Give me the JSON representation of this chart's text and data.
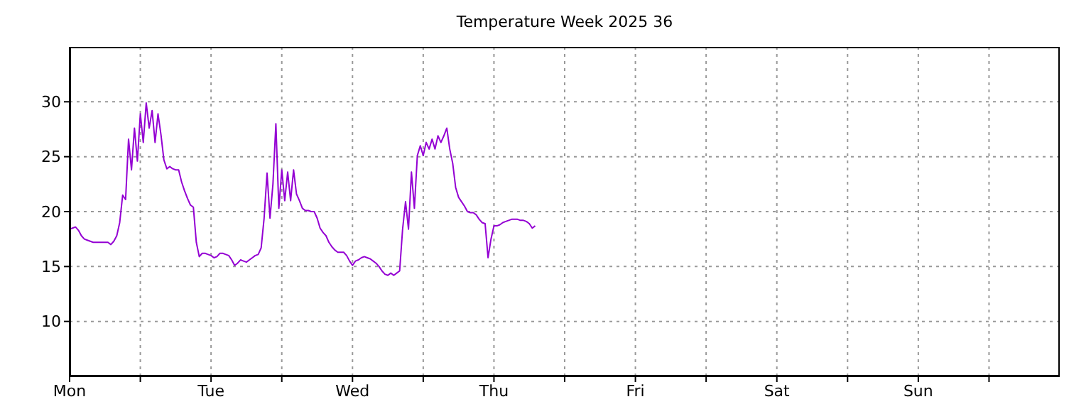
{
  "chart_data": {
    "type": "line",
    "title": "Temperature Week 2025 36",
    "categories": [
      "Mon",
      null,
      null,
      null,
      null,
      null,
      null,
      null,
      null,
      null,
      null,
      null,
      null,
      null,
      null,
      null,
      null,
      null,
      null,
      null,
      null,
      null,
      null,
      null,
      null,
      null,
      null,
      null,
      null,
      null,
      null,
      null,
      null,
      null,
      null,
      null,
      null,
      null,
      null,
      null,
      null,
      null,
      null,
      null,
      null,
      null,
      null,
      null,
      "Tue",
      null,
      null,
      null,
      null,
      null,
      null,
      null,
      null,
      null,
      null,
      null,
      null,
      null,
      null,
      null,
      null,
      null,
      null,
      null,
      null,
      null,
      null,
      null,
      null,
      null,
      null,
      null,
      null,
      null,
      null,
      null,
      null,
      null,
      null,
      null,
      null,
      null,
      null,
      null,
      null,
      null,
      null,
      null,
      null,
      null,
      null,
      null,
      "Wed",
      null,
      null,
      null,
      null,
      null,
      null,
      null,
      null,
      null,
      null,
      null,
      null,
      null,
      null,
      null,
      null,
      null,
      null,
      null,
      null,
      null,
      null,
      null,
      null,
      null,
      null,
      null,
      null,
      null,
      null,
      null,
      null,
      null,
      null,
      null,
      null,
      null,
      null,
      null,
      null,
      null,
      null,
      null,
      null,
      null,
      null,
      null,
      "Thu",
      null,
      null,
      null,
      null,
      null,
      null,
      null,
      null,
      null,
      null,
      null,
      null,
      null,
      null,
      null,
      null,
      null,
      null,
      null,
      null,
      null,
      null,
      null,
      null,
      null,
      null,
      null,
      null,
      null,
      null,
      null,
      null,
      null,
      null,
      null,
      null,
      null,
      null,
      null,
      null,
      null,
      null,
      null,
      null,
      null,
      null,
      null,
      "Fri",
      null,
      null,
      null,
      null,
      null,
      null,
      null,
      null,
      null,
      null,
      null,
      null,
      null,
      null,
      null,
      null,
      null,
      null,
      null,
      null,
      null,
      null,
      null,
      null,
      null,
      null,
      null,
      null,
      null,
      null,
      null,
      null,
      null,
      null,
      null,
      null,
      null,
      null,
      null,
      null,
      null,
      null,
      null,
      null,
      null,
      null,
      null,
      "Sat",
      null,
      null,
      null,
      null,
      null,
      null,
      null,
      null,
      null,
      null,
      null,
      null,
      null,
      null,
      null,
      null,
      null,
      null,
      null,
      null,
      null,
      null,
      null,
      null,
      null,
      null,
      null,
      null,
      null,
      null,
      null,
      null,
      null,
      null,
      null,
      null,
      null,
      null,
      null,
      null,
      null,
      null,
      null,
      null,
      null,
      null,
      null,
      "Sun",
      null,
      null,
      null,
      null,
      null,
      null,
      null,
      null,
      null,
      null,
      null,
      null,
      null,
      null,
      null,
      null,
      null,
      null,
      null,
      null,
      null,
      null,
      null,
      null,
      null,
      null,
      null,
      null,
      null,
      null,
      null,
      null,
      null,
      null,
      null,
      null,
      null,
      null,
      null,
      null,
      null,
      null,
      null,
      null,
      null,
      null,
      null
    ],
    "series": [
      {
        "color": "#9400d3",
        "values": [
          18.4,
          18.5,
          18.6,
          18.3,
          17.8,
          17.5,
          17.4,
          17.3,
          17.2,
          17.2,
          17.2,
          17.2,
          17.2,
          17.2,
          17.0,
          17.3,
          17.8,
          19.0,
          21.5,
          21.1,
          26.6,
          23.8,
          27.6,
          24.6,
          28.9,
          26.3,
          29.9,
          27.6,
          29.2,
          26.3,
          28.9,
          27.0,
          24.7,
          23.9,
          24.1,
          23.9,
          23.8,
          23.8,
          22.7,
          21.9,
          21.2,
          20.6,
          20.4,
          17.2,
          15.9,
          16.2,
          16.2,
          16.1,
          16.0,
          15.8,
          15.9,
          16.2,
          16.2,
          16.1,
          16.0,
          15.6,
          15.1,
          15.3,
          15.6,
          15.5,
          15.4,
          15.6,
          15.8,
          16.0,
          16.1,
          16.7,
          19.4,
          23.5,
          19.4,
          22.5,
          28.0,
          20.3,
          23.8,
          21.0,
          23.6,
          21.0,
          23.8,
          21.6,
          21.0,
          20.3,
          20.1,
          20.1,
          20.0,
          20.0,
          19.4,
          18.5,
          18.1,
          17.8,
          17.2,
          16.8,
          16.5,
          16.3,
          16.3,
          16.3,
          16.0,
          15.5,
          15.1,
          15.5,
          15.6,
          15.8,
          15.9,
          15.8,
          15.7,
          15.5,
          15.3,
          15.0,
          14.6,
          14.3,
          14.2,
          14.4,
          14.2,
          14.4,
          14.6,
          18.4,
          20.9,
          18.4,
          23.6,
          20.3,
          25.1,
          26.0,
          25.1,
          26.3,
          25.7,
          26.6,
          25.7,
          26.9,
          26.3,
          26.9,
          27.6,
          25.7,
          24.4,
          22.2,
          21.3,
          20.9,
          20.5,
          20.0,
          19.9,
          19.9,
          19.7,
          19.3,
          19.0,
          18.9,
          15.8,
          17.5,
          18.7,
          18.7,
          18.8,
          19.0,
          19.1,
          19.2,
          19.3,
          19.3,
          19.3,
          19.2,
          19.2,
          19.1,
          18.9,
          18.5,
          18.7,
          null,
          null,
          null,
          null,
          null,
          null,
          null,
          null,
          null,
          null,
          null,
          null,
          null,
          null,
          null,
          null,
          null,
          null,
          null,
          null,
          null,
          null,
          null,
          null,
          null,
          null,
          null,
          null,
          null,
          null,
          null,
          null,
          null,
          null,
          null,
          null,
          null,
          null,
          null,
          null,
          null,
          null,
          null,
          null,
          null,
          null,
          null,
          null,
          null,
          null,
          null,
          null,
          null,
          null,
          null,
          null,
          null,
          null,
          null,
          null,
          null,
          null,
          null,
          null,
          null,
          null,
          null,
          null,
          null,
          null,
          null,
          null,
          null,
          null,
          null,
          null,
          null,
          null,
          null,
          null,
          null,
          null,
          null,
          null,
          null,
          null,
          null,
          null,
          null,
          null,
          null,
          null,
          null,
          null,
          null,
          null,
          null,
          null,
          null,
          null,
          null,
          null,
          null,
          null,
          null,
          null,
          null,
          null,
          null,
          null,
          null,
          null,
          null,
          null,
          null,
          null,
          null,
          null,
          null,
          null,
          null,
          null,
          null,
          null,
          null,
          null,
          null,
          null,
          null,
          null,
          null,
          null,
          null,
          null,
          null,
          null,
          null,
          null,
          null,
          null,
          null,
          null,
          null,
          null,
          null,
          null,
          null,
          null,
          null,
          null,
          null,
          null,
          null,
          null,
          null,
          null,
          null,
          null,
          null,
          null,
          null,
          null,
          null,
          null,
          null,
          null,
          null,
          null,
          null,
          null,
          null,
          null,
          null,
          null,
          null,
          null,
          null
        ]
      }
    ],
    "ylim": [
      5,
      35
    ],
    "yticks": [
      10,
      15,
      20,
      25,
      30
    ],
    "grid": true,
    "marker": "none",
    "line_style": "solid"
  }
}
